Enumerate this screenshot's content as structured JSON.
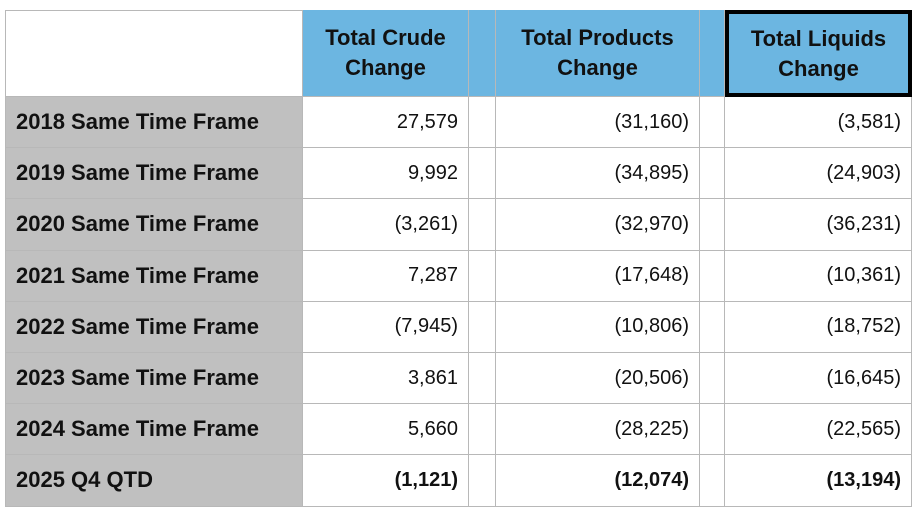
{
  "table": {
    "header": [
      "Total Crude Change",
      "Total Products Change",
      "Total Liquids Change"
    ],
    "rows": [
      [
        "2018 Same Time Frame",
        "27,579",
        "(31,160)",
        "(3,581)"
      ],
      [
        "2019 Same Time Frame",
        "9,992",
        "(34,895)",
        "(24,903)"
      ],
      [
        "2020 Same Time Frame",
        "(3,261)",
        "(32,970)",
        "(36,231)"
      ],
      [
        "2021 Same Time Frame",
        "7,287",
        "(17,648)",
        "(10,361)"
      ],
      [
        "2022 Same Time Frame",
        "(7,945)",
        "(10,806)",
        "(18,752)"
      ],
      [
        "2023 Same Time Frame",
        "3,861",
        "(20,506)",
        "(16,645)"
      ],
      [
        "2024 Same Time Frame",
        "5,660",
        "(28,225)",
        "(22,565)"
      ],
      [
        "2025 Q4 QTD",
        "(1,121)",
        "(12,074)",
        "(13,194)"
      ]
    ]
  }
}
